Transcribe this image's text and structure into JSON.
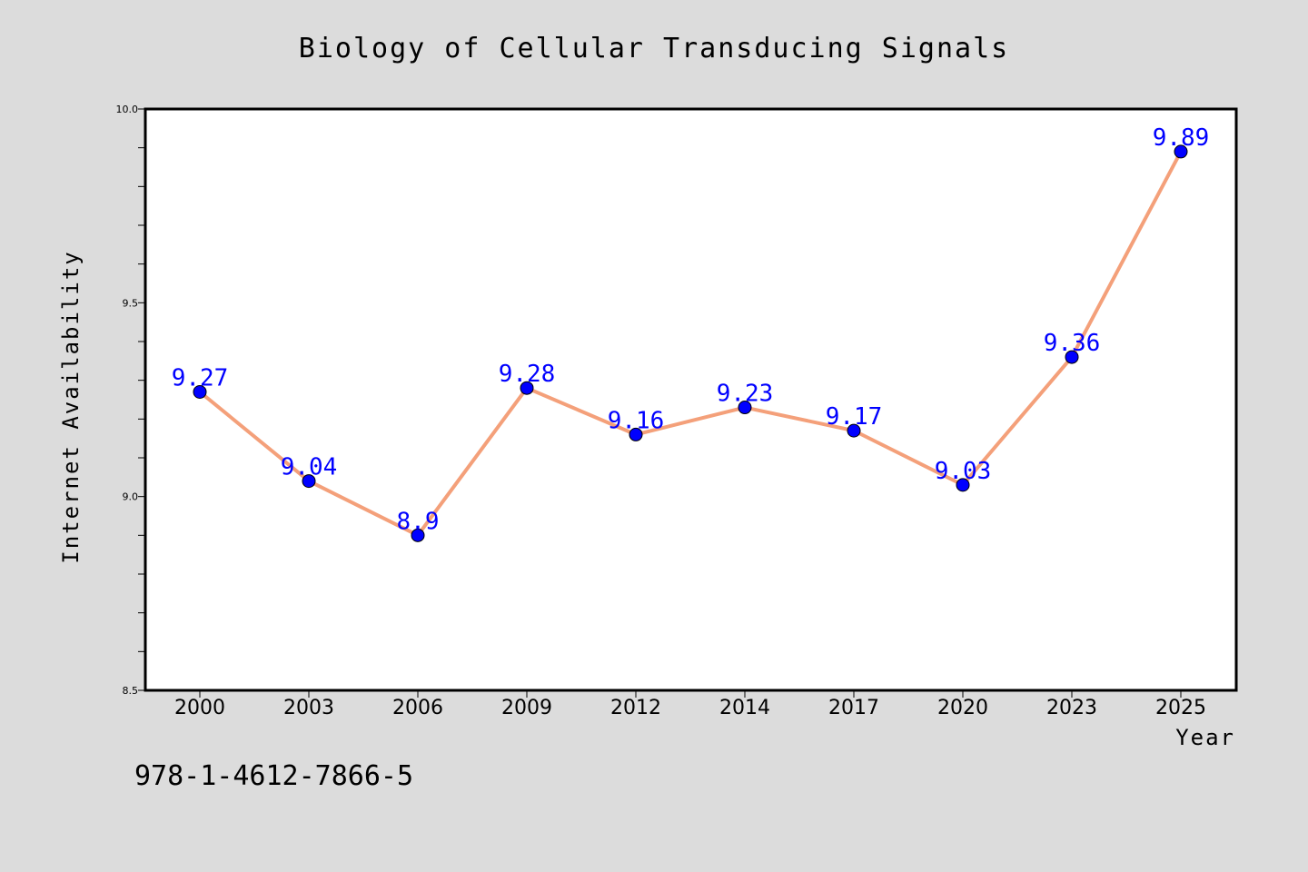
{
  "chart_data": {
    "type": "line",
    "title": "Biology of Cellular Transducing Signals",
    "xlabel": "Year",
    "ylabel": "Internet Availability",
    "categories": [
      "2000",
      "2003",
      "2006",
      "2009",
      "2012",
      "2014",
      "2017",
      "2020",
      "2023",
      "2025"
    ],
    "series": [
      {
        "values": [
          9.27,
          9.04,
          8.9,
          9.28,
          9.16,
          9.23,
          9.17,
          9.03,
          9.36,
          9.89
        ],
        "labels": [
          "9.27",
          "9.04",
          "8.9",
          "9.28",
          "9.16",
          "9.23",
          "9.17",
          "9.03",
          "9.36",
          "9.89"
        ]
      }
    ],
    "ylim": [
      8.5,
      10.0
    ],
    "yticks": [
      "8.5",
      "9.0",
      "9.5",
      "10.0"
    ],
    "grid": false,
    "colors": {
      "line": "#f4a07a",
      "marker": "#0000ff",
      "label": "#0000ff",
      "background": "#dcdcdc",
      "plot_bg": "#ffffff"
    }
  },
  "footer": {
    "isbn": "978-1-4612-7866-5"
  }
}
